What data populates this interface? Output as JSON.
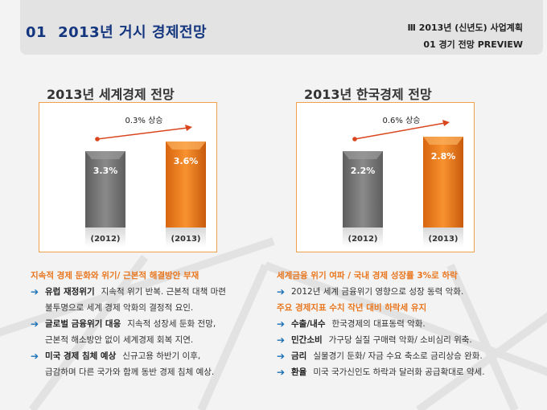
{
  "header": {
    "number": "01",
    "title": "2013년 거시 경제전망",
    "breadcrumb_line1": "Ⅲ   2013년 (신년도) 사업계획",
    "breadcrumb_line2": "01   경기 전망 PREVIEW"
  },
  "colors": {
    "title_blue": "#14367f",
    "accent_orange": "#e8761e",
    "bar_gray": "#7a7a7a",
    "bar_orange": "#f07f1c",
    "arrow_red": "#d9461e",
    "bullet_blue": "#1a6fb5"
  },
  "chart_data": [
    {
      "type": "bar",
      "title": "2013년 세계경제 전망",
      "categories": [
        "(2012)",
        "(2013)"
      ],
      "values": [
        3.3,
        3.6
      ],
      "value_labels": [
        "3.3%",
        "3.6%"
      ],
      "annotation": "0.3% 상승",
      "unit": "%",
      "xlabel": "",
      "ylabel": "",
      "grid": false
    },
    {
      "type": "bar",
      "title": "2013년 한국경제 전망",
      "categories": [
        "(2012)",
        "(2013)"
      ],
      "values": [
        2.2,
        2.8
      ],
      "value_labels": [
        "2.2%",
        "2.8%"
      ],
      "annotation": "0.6% 상승",
      "unit": "%",
      "xlabel": "",
      "ylabel": "",
      "grid": false
    }
  ],
  "left_text": {
    "heading": "지속적 경제 둔화와 위기/ 근본적 해결방안 부재",
    "items": [
      {
        "label": "유럽 재정위기",
        "text": "지속적 위기 반복. 근본적 대책 마련",
        "cont": "불투명으로 세계 경제 악화의 결정적 요인."
      },
      {
        "label": "글로벌 금융위기 대응",
        "text": "지속적 성장세 둔화 전망,",
        "cont": "근본적 해소방안 없이 세계경제 회복 지연."
      },
      {
        "label": "미국 경제 침체 예상",
        "text": "신규고용 하반기 이후,",
        "cont": "급감하며 다른 국가와 함께 동반 경제 침체 예상."
      }
    ]
  },
  "right_text": {
    "heading1": "세계금융 위기 여파 / 국내 경제 성장률 3%로 하락",
    "item1": "2012년 세계 금융위기 영향으로 성장 동력 악화.",
    "heading2": "주요 경제지표 수치 작년 대비 하락세 유지",
    "items": [
      {
        "label": "수출/내수",
        "text": "한국경제의 대표동력 악화."
      },
      {
        "label": "민간소비",
        "text": "가구당 실질 구매력 악화/ 소비심리 위축."
      },
      {
        "label": "금리",
        "text": "실물경기 둔화/ 자금 수요 축소로 금리상승 완화."
      },
      {
        "label": "환율",
        "text": "미국 국가신인도 하락과 달러화 공급확대로 약세."
      }
    ]
  }
}
